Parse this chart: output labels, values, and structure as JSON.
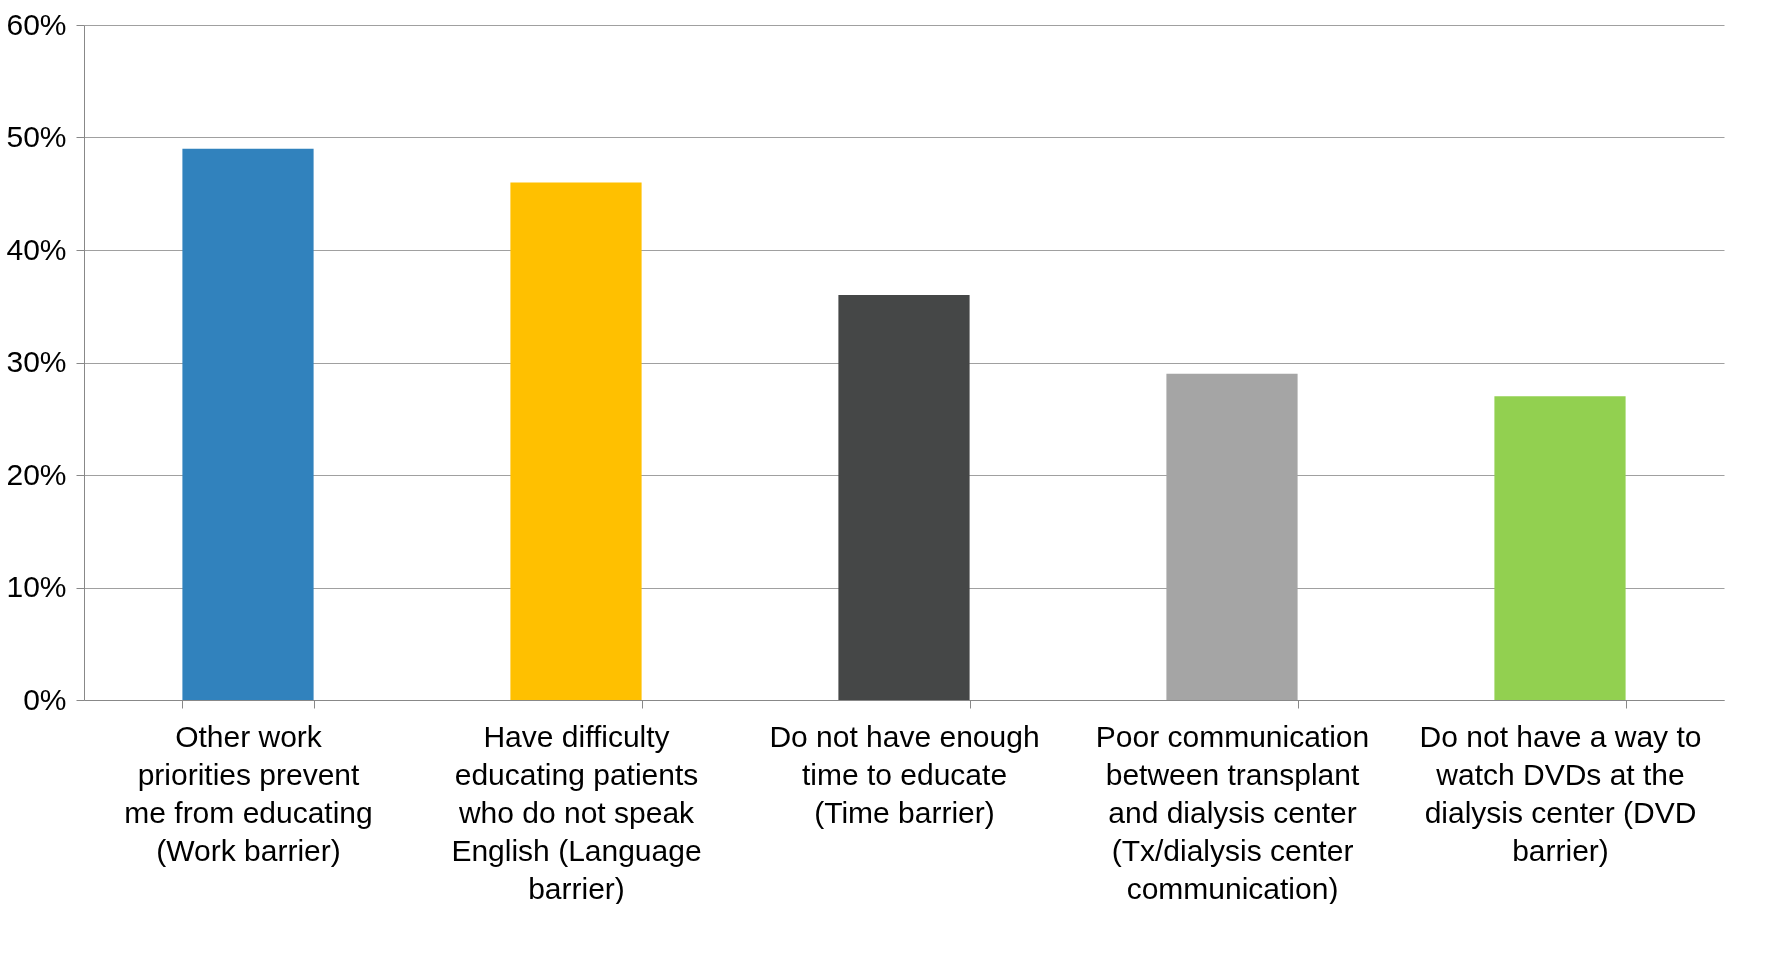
{
  "chart_data": {
    "type": "bar",
    "categories": [
      "Other work priorities prevent me from educating (Work barrier)",
      "Have difficulty educating patients who do not speak English (Language barrier)",
      "Do not have enough time to educate (Time barrier)",
      "Poor communication between transplant and dialysis center (Tx/dialysis center communication)",
      "Do not have a way to watch DVDs at the dialysis center (DVD barrier)"
    ],
    "values": [
      49,
      46,
      36,
      29,
      27
    ],
    "colors": [
      "#3182bd",
      "#ffc000",
      "#454747",
      "#a5a5a5",
      "#92d050"
    ],
    "ylim": [
      0,
      60
    ],
    "yticks": [
      {
        "value": 0,
        "label": "0%"
      },
      {
        "value": 10,
        "label": "10%"
      },
      {
        "value": 20,
        "label": "20%"
      },
      {
        "value": 30,
        "label": "30%"
      },
      {
        "value": 40,
        "label": "40%"
      },
      {
        "value": 50,
        "label": "50%"
      },
      {
        "value": 60,
        "label": "60%"
      }
    ],
    "grid": "y",
    "legend": false
  }
}
